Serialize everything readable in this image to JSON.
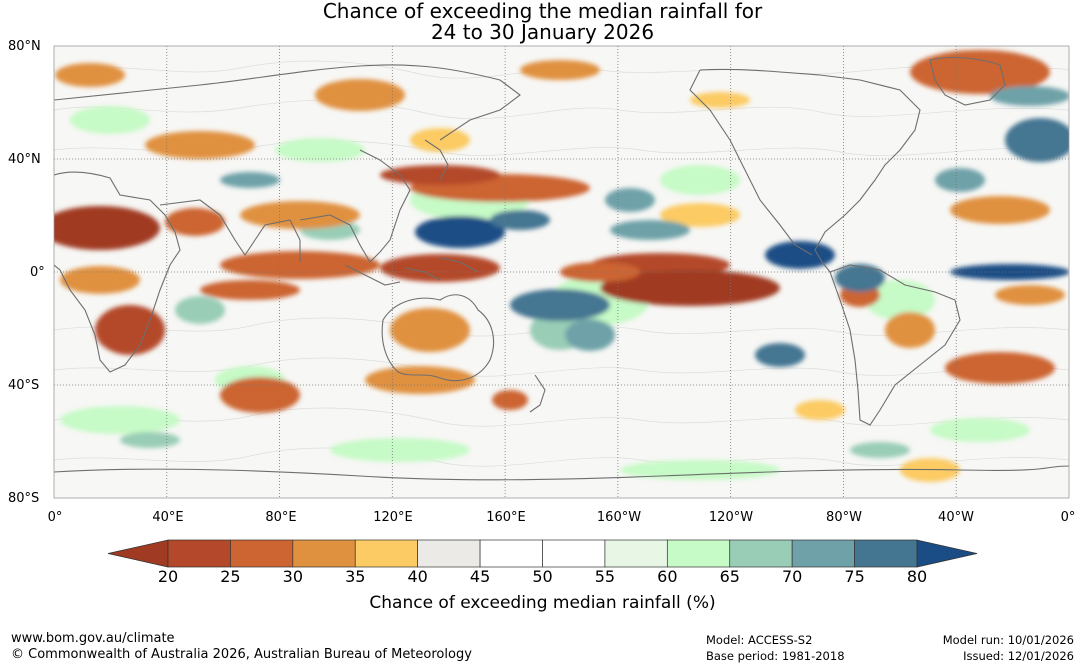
{
  "title": {
    "line1": "Chance of exceeding the median rainfall for",
    "line2": "24 to 30 January 2026"
  },
  "lat_labels": [
    "80°N",
    "40°N",
    "0°",
    "40°S",
    "80°S"
  ],
  "lon_labels": [
    "0°",
    "40°E",
    "80°E",
    "120°E",
    "160°E",
    "160°W",
    "120°W",
    "80°W",
    "40°W",
    "0°"
  ],
  "colorbar": {
    "ticks": [
      "20",
      "25",
      "30",
      "35",
      "40",
      "45",
      "50",
      "55",
      "60",
      "65",
      "70",
      "75",
      "80"
    ],
    "colors": [
      "#a03a22",
      "#b4482a",
      "#cc6531",
      "#e0913f",
      "#fccb64",
      "#eceae6",
      "#ffffff",
      "#ffffff",
      "#e8f6e6",
      "#c6fac6",
      "#99cdb6",
      "#6ea2a8",
      "#447692",
      "#1a4d85"
    ],
    "label": "Chance of exceeding median rainfall (%)"
  },
  "footer": {
    "website": "www.bom.gov.au/climate",
    "copyright": "© Commonwealth of Australia 2026, Australian Bureau of Meteorology",
    "model": "Model: ACCESS-S2",
    "base_period": "Base period: 1981-2018",
    "model_run": "Model run: 10/01/2026",
    "issued": "Issued: 12/01/2026"
  }
}
